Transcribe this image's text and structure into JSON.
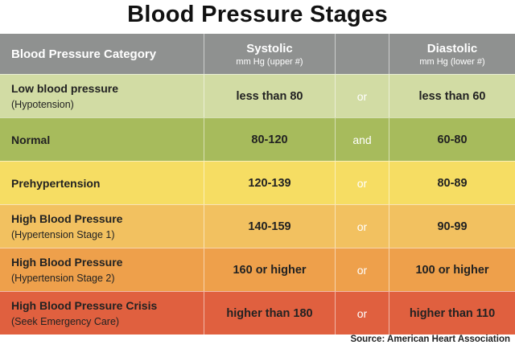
{
  "title": "Blood Pressure Stages",
  "header": {
    "category": "Blood Pressure Category",
    "systolic": "Systolic",
    "systolic_unit": "mm Hg (upper #)",
    "diastolic": "Diastolic",
    "diastolic_unit": "mm Hg (lower #)"
  },
  "rows": [
    {
      "category": "Low blood pressure",
      "sub": "(Hypotension)",
      "systolic": "less than 80",
      "conj": "or",
      "diastolic": "less than 60",
      "color": "#d2dca4",
      "conj_color": "#ffffff"
    },
    {
      "category": "Normal",
      "sub": "",
      "systolic": "80-120",
      "conj": "and",
      "diastolic": "60-80",
      "color": "#a7bb5c",
      "conj_color": "#ffffff"
    },
    {
      "category": "Prehypertension",
      "sub": "",
      "systolic": "120-139",
      "conj": "or",
      "diastolic": "80-89",
      "color": "#f6dd63",
      "conj_color": "#ffffff"
    },
    {
      "category": "High Blood Pressure",
      "sub": "(Hypertension Stage 1)",
      "systolic": "140-159",
      "conj": "or",
      "diastolic": "90-99",
      "color": "#f2c160",
      "conj_color": "#ffffff"
    },
    {
      "category": "High Blood Pressure",
      "sub": "(Hypertension Stage 2)",
      "systolic": "160 or higher",
      "conj": "or",
      "diastolic": "100 or higher",
      "color": "#eea04b",
      "conj_color": "#ffffff"
    },
    {
      "category": "High Blood Pressure Crisis",
      "sub": "(Seek Emergency Care)",
      "systolic": "higher than 180",
      "conj": "or",
      "diastolic": "higher than 110",
      "color": "#e0603f",
      "conj_color": "#ffffff"
    }
  ],
  "source": "Source: American Heart Association"
}
